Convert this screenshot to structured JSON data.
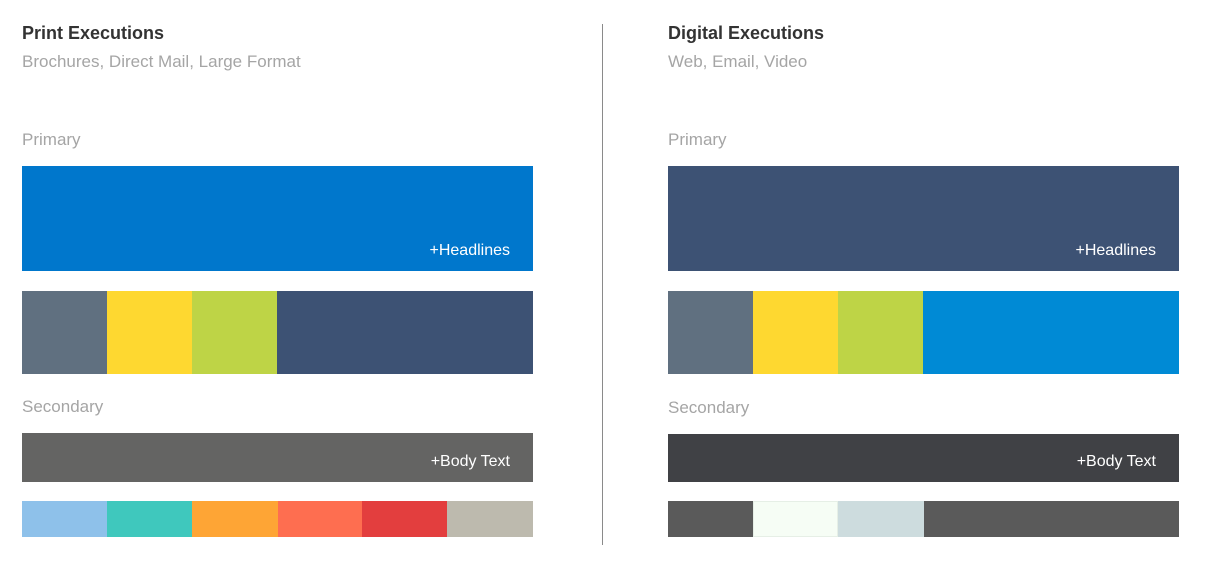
{
  "print": {
    "title": "Print Executions",
    "subtitle": "Brochures, Direct Mail, Large Format",
    "primary_label": "Primary",
    "primary_main": {
      "color": "#0077cc",
      "tag": "+Headlines"
    },
    "primary_swatches": [
      "#607080",
      "#fed830",
      "#bed446",
      "#3d5274"
    ],
    "secondary_label": "Secondary",
    "secondary_main": {
      "color": "#646463",
      "tag": "+Body Text"
    },
    "secondary_swatches": [
      "#8ec1ea",
      "#3fc8bd",
      "#fea535",
      "#fe6e50",
      "#e33e3e",
      "#bdbaae"
    ]
  },
  "digital": {
    "title": "Digital Executions",
    "subtitle": "Web, Email, Video",
    "primary_label": "Primary",
    "primary_main": {
      "color": "#3d5274",
      "tag": "+Headlines"
    },
    "primary_swatches": [
      "#607080",
      "#fed830",
      "#bed446",
      "#008ad5"
    ],
    "secondary_label": "Secondary",
    "secondary_main": {
      "color": "#404145",
      "tag": "+Body Text"
    },
    "secondary_swatches": [
      "#5a5a5a",
      "#f6fdf5",
      "#cddcde",
      "#5a5a5a"
    ]
  }
}
